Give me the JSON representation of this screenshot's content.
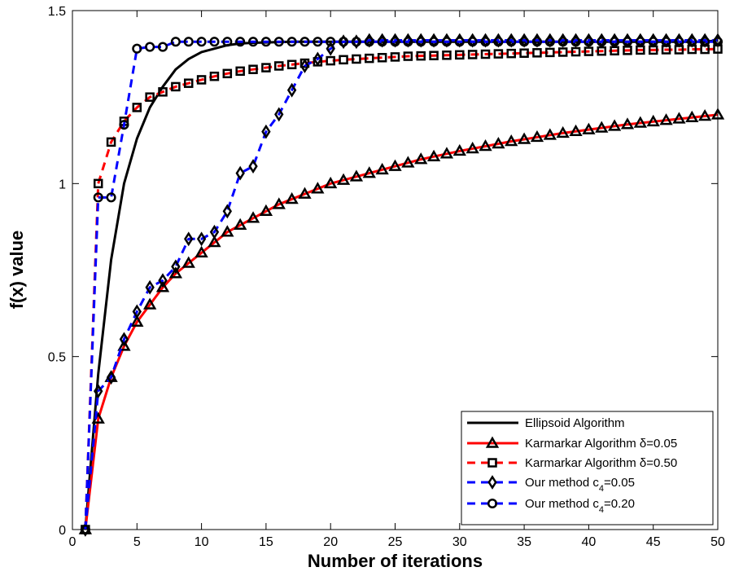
{
  "chart_data": {
    "type": "line",
    "xlabel": "Number of iterations",
    "ylabel": "f(x) value",
    "xlim": [
      0,
      50
    ],
    "ylim": [
      0,
      1.5
    ],
    "xticks": [
      0,
      5,
      10,
      15,
      20,
      25,
      30,
      35,
      40,
      45,
      50
    ],
    "yticks": [
      0,
      0.5,
      1,
      1.5
    ],
    "xtick_labels": [
      "0",
      "5",
      "10",
      "15",
      "20",
      "25",
      "30",
      "35",
      "40",
      "45",
      "50"
    ],
    "ytick_labels": [
      "0",
      "0.5",
      "1",
      "1.5"
    ],
    "grid": false,
    "legend_position": "bottom-right",
    "series": [
      {
        "name": "Ellipsoid Algorithm",
        "color": "#000000",
        "dash": "solid",
        "marker": "none",
        "x": [
          1,
          2,
          3,
          4,
          5,
          6,
          7,
          8,
          9,
          10,
          11,
          12,
          13,
          14,
          15,
          16,
          17,
          18,
          19,
          20,
          21,
          22,
          23,
          24,
          25,
          26,
          27,
          28,
          29,
          30,
          31,
          32,
          33,
          34,
          35,
          36,
          37,
          38,
          39,
          40,
          41,
          42,
          43,
          44,
          45,
          46,
          47,
          48,
          49,
          50
        ],
        "y": [
          0,
          0.45,
          0.78,
          1.0,
          1.13,
          1.22,
          1.28,
          1.33,
          1.36,
          1.38,
          1.39,
          1.4,
          1.405,
          1.407,
          1.408,
          1.409,
          1.41,
          1.41,
          1.41,
          1.41,
          1.41,
          1.41,
          1.41,
          1.41,
          1.41,
          1.41,
          1.41,
          1.41,
          1.41,
          1.41,
          1.41,
          1.41,
          1.41,
          1.41,
          1.41,
          1.41,
          1.41,
          1.41,
          1.41,
          1.41,
          1.41,
          1.41,
          1.41,
          1.41,
          1.41,
          1.41,
          1.41,
          1.41,
          1.41,
          1.414
        ]
      },
      {
        "name": "Karmarkar Algorithm δ=0.05",
        "color": "#ff0000",
        "dash": "solid",
        "marker": "triangle",
        "x": [
          1,
          2,
          3,
          4,
          5,
          6,
          7,
          8,
          9,
          10,
          11,
          12,
          13,
          14,
          15,
          16,
          17,
          18,
          19,
          20,
          21,
          22,
          23,
          24,
          25,
          26,
          27,
          28,
          29,
          30,
          31,
          32,
          33,
          34,
          35,
          36,
          37,
          38,
          39,
          40,
          41,
          42,
          43,
          44,
          45,
          46,
          47,
          48,
          49,
          50
        ],
        "y": [
          0,
          0.32,
          0.44,
          0.53,
          0.6,
          0.65,
          0.7,
          0.74,
          0.77,
          0.8,
          0.83,
          0.86,
          0.88,
          0.9,
          0.92,
          0.94,
          0.955,
          0.97,
          0.985,
          1.0,
          1.01,
          1.02,
          1.03,
          1.04,
          1.05,
          1.06,
          1.07,
          1.078,
          1.086,
          1.094,
          1.101,
          1.108,
          1.115,
          1.122,
          1.128,
          1.134,
          1.14,
          1.146,
          1.151,
          1.156,
          1.161,
          1.166,
          1.171,
          1.175,
          1.179,
          1.183,
          1.187,
          1.191,
          1.195,
          1.199
        ]
      },
      {
        "name": "Karmarkar Algorithm δ=0.50",
        "color": "#ff0000",
        "dash": "dashed",
        "marker": "square",
        "x": [
          1,
          2,
          3,
          4,
          5,
          6,
          7,
          8,
          9,
          10,
          11,
          12,
          13,
          14,
          15,
          16,
          17,
          18,
          19,
          20,
          21,
          22,
          23,
          24,
          25,
          26,
          27,
          28,
          29,
          30,
          31,
          32,
          33,
          34,
          35,
          36,
          37,
          38,
          39,
          40,
          41,
          42,
          43,
          44,
          45,
          46,
          47,
          48,
          49,
          50
        ],
        "y": [
          0,
          1.0,
          1.12,
          1.18,
          1.22,
          1.25,
          1.265,
          1.28,
          1.29,
          1.3,
          1.31,
          1.318,
          1.325,
          1.33,
          1.335,
          1.34,
          1.344,
          1.348,
          1.352,
          1.355,
          1.358,
          1.36,
          1.362,
          1.364,
          1.366,
          1.368,
          1.369,
          1.37,
          1.371,
          1.372,
          1.373,
          1.374,
          1.375,
          1.376,
          1.377,
          1.378,
          1.379,
          1.38,
          1.381,
          1.382,
          1.383,
          1.384,
          1.385,
          1.386,
          1.386,
          1.387,
          1.387,
          1.388,
          1.388,
          1.389
        ]
      },
      {
        "name": "Our method c4=0.05",
        "color": "#0000ff",
        "dash": "dashed",
        "marker": "diamond",
        "x": [
          1,
          2,
          3,
          4,
          5,
          6,
          7,
          8,
          9,
          10,
          11,
          12,
          13,
          14,
          15,
          16,
          17,
          18,
          19,
          20,
          21,
          22,
          23,
          24,
          25,
          26,
          27,
          28,
          29,
          30,
          31,
          32,
          33,
          34,
          35,
          36,
          37,
          38,
          39,
          40,
          41,
          42,
          43,
          44,
          45,
          46,
          47,
          48,
          49,
          50
        ],
        "y": [
          0,
          0.4,
          0.44,
          0.55,
          0.63,
          0.7,
          0.72,
          0.76,
          0.84,
          0.84,
          0.86,
          0.92,
          1.03,
          1.05,
          1.15,
          1.2,
          1.27,
          1.34,
          1.36,
          1.39,
          1.41,
          1.41,
          1.414,
          1.414,
          1.414,
          1.414,
          1.414,
          1.414,
          1.414,
          1.414,
          1.414,
          1.414,
          1.414,
          1.414,
          1.414,
          1.414,
          1.414,
          1.414,
          1.414,
          1.414,
          1.414,
          1.414,
          1.414,
          1.414,
          1.414,
          1.414,
          1.414,
          1.414,
          1.414,
          1.414
        ]
      },
      {
        "name": "Our method c4=0.20",
        "color": "#0000ff",
        "dash": "dashed",
        "marker": "circle",
        "x": [
          1,
          2,
          3,
          4,
          5,
          6,
          7,
          8,
          9,
          10,
          11,
          12,
          13,
          14,
          15,
          16,
          17,
          18,
          19,
          20,
          21,
          22,
          23,
          24,
          25,
          26,
          27,
          28,
          29,
          30,
          31,
          32,
          33,
          34,
          35,
          36,
          37,
          38,
          39,
          40,
          41,
          42,
          43,
          44,
          45,
          46,
          47,
          48,
          49,
          50
        ],
        "y": [
          0,
          0.96,
          0.96,
          1.17,
          1.39,
          1.395,
          1.395,
          1.41,
          1.41,
          1.41,
          1.41,
          1.41,
          1.41,
          1.41,
          1.41,
          1.41,
          1.41,
          1.41,
          1.41,
          1.41,
          1.41,
          1.41,
          1.41,
          1.41,
          1.41,
          1.41,
          1.41,
          1.41,
          1.41,
          1.41,
          1.41,
          1.41,
          1.41,
          1.41,
          1.41,
          1.41,
          1.41,
          1.41,
          1.41,
          1.41,
          1.41,
          1.41,
          1.41,
          1.41,
          1.41,
          1.41,
          1.41,
          1.41,
          1.41,
          1.41
        ]
      }
    ]
  }
}
